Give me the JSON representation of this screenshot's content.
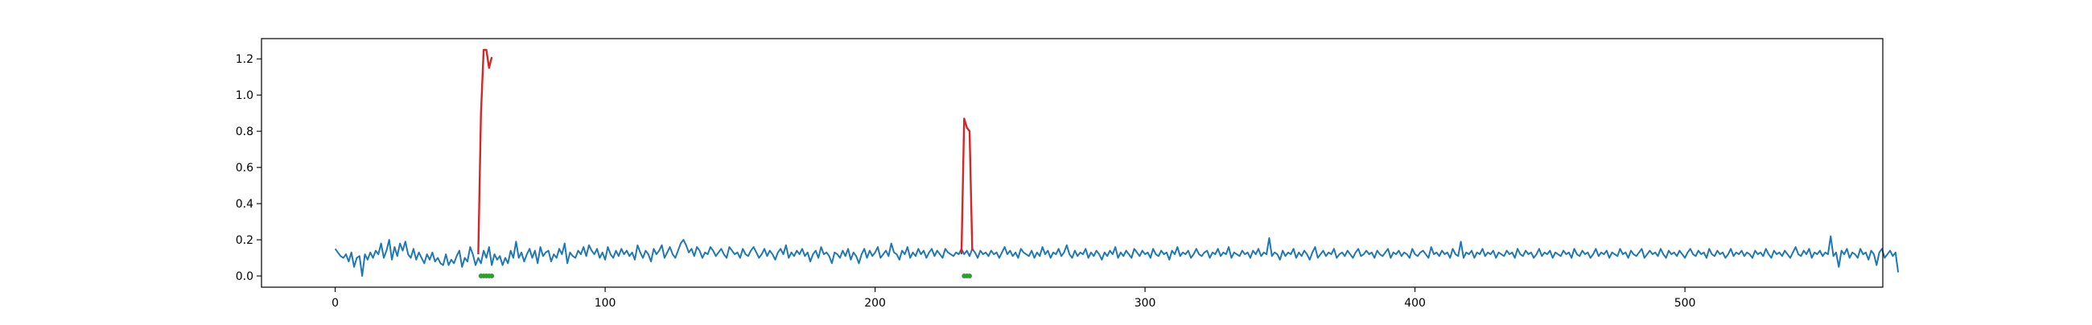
{
  "chart_data": {
    "type": "line",
    "title": "",
    "xlabel": "",
    "ylabel": "",
    "xlim": [
      -27.3,
      573.3
    ],
    "ylim": [
      -0.062,
      1.312
    ],
    "x_ticks": [
      0,
      100,
      200,
      300,
      400,
      500
    ],
    "y_ticks": [
      0.0,
      0.2,
      0.4,
      0.6,
      0.8,
      1.0,
      1.2
    ],
    "x_tick_labels": [
      "0",
      "100",
      "200",
      "300",
      "400",
      "500"
    ],
    "y_tick_labels": [
      "0.0",
      "0.2",
      "0.4",
      "0.6",
      "0.8",
      "1.0",
      "1.2"
    ],
    "grid": false,
    "legend": "none",
    "series": [
      {
        "color": "#1f77b4",
        "x_start": 0,
        "values": [
          0.15,
          0.13,
          0.11,
          0.1,
          0.12,
          0.08,
          0.13,
          0.05,
          0.1,
          0.11,
          0.0,
          0.12,
          0.09,
          0.13,
          0.1,
          0.14,
          0.12,
          0.18,
          0.1,
          0.14,
          0.2,
          0.09,
          0.16,
          0.11,
          0.18,
          0.14,
          0.19,
          0.12,
          0.1,
          0.15,
          0.09,
          0.13,
          0.1,
          0.07,
          0.12,
          0.09,
          0.13,
          0.08,
          0.1,
          0.07,
          0.06,
          0.12,
          0.06,
          0.09,
          0.07,
          0.11,
          0.14,
          0.05,
          0.1,
          0.08,
          0.16,
          0.12,
          0.06,
          0.1,
          0.07,
          0.14,
          0.1,
          0.16,
          0.06,
          0.12,
          0.09,
          0.11,
          0.06,
          0.1,
          0.07,
          0.14,
          0.1,
          0.19,
          0.1,
          0.13,
          0.08,
          0.12,
          0.15,
          0.1,
          0.14,
          0.07,
          0.16,
          0.11,
          0.13,
          0.14,
          0.08,
          0.12,
          0.1,
          0.15,
          0.12,
          0.18,
          0.07,
          0.13,
          0.11,
          0.1,
          0.14,
          0.12,
          0.16,
          0.11,
          0.17,
          0.14,
          0.12,
          0.15,
          0.1,
          0.13,
          0.09,
          0.16,
          0.12,
          0.1,
          0.14,
          0.11,
          0.15,
          0.12,
          0.14,
          0.11,
          0.13,
          0.09,
          0.17,
          0.13,
          0.1,
          0.14,
          0.12,
          0.08,
          0.15,
          0.12,
          0.14,
          0.17,
          0.1,
          0.13,
          0.16,
          0.12,
          0.1,
          0.14,
          0.18,
          0.2,
          0.17,
          0.13,
          0.15,
          0.11,
          0.16,
          0.14,
          0.1,
          0.13,
          0.12,
          0.16,
          0.14,
          0.11,
          0.13,
          0.15,
          0.12,
          0.1,
          0.16,
          0.14,
          0.12,
          0.13,
          0.1,
          0.15,
          0.12,
          0.11,
          0.14,
          0.16,
          0.13,
          0.1,
          0.12,
          0.15,
          0.11,
          0.14,
          0.12,
          0.09,
          0.13,
          0.15,
          0.12,
          0.17,
          0.1,
          0.13,
          0.11,
          0.14,
          0.12,
          0.15,
          0.11,
          0.13,
          0.08,
          0.12,
          0.14,
          0.1,
          0.16,
          0.12,
          0.13,
          0.11,
          0.07,
          0.13,
          0.12,
          0.1,
          0.14,
          0.11,
          0.15,
          0.09,
          0.13,
          0.11,
          0.07,
          0.12,
          0.15,
          0.1,
          0.14,
          0.11,
          0.13,
          0.16,
          0.1,
          0.12,
          0.14,
          0.11,
          0.18,
          0.13,
          0.12,
          0.09,
          0.14,
          0.12,
          0.16,
          0.1,
          0.13,
          0.11,
          0.15,
          0.12,
          0.14,
          0.1,
          0.13,
          0.15,
          0.11,
          0.14,
          0.12,
          0.1,
          0.15,
          0.13,
          0.12,
          0.11,
          0.13,
          0.12,
          0.15,
          0.12,
          0.14,
          0.11,
          0.15,
          0.13,
          0.1,
          0.14,
          0.12,
          0.13,
          0.11,
          0.14,
          0.12,
          0.13,
          0.1,
          0.13,
          0.16,
          0.12,
          0.14,
          0.11,
          0.13,
          0.1,
          0.15,
          0.13,
          0.12,
          0.11,
          0.14,
          0.1,
          0.13,
          0.11,
          0.16,
          0.12,
          0.14,
          0.1,
          0.13,
          0.12,
          0.15,
          0.11,
          0.13,
          0.17,
          0.12,
          0.1,
          0.14,
          0.11,
          0.13,
          0.12,
          0.15,
          0.1,
          0.13,
          0.11,
          0.14,
          0.12,
          0.09,
          0.13,
          0.11,
          0.14,
          0.12,
          0.16,
          0.1,
          0.13,
          0.11,
          0.14,
          0.12,
          0.1,
          0.15,
          0.13,
          0.11,
          0.14,
          0.12,
          0.13,
          0.1,
          0.15,
          0.12,
          0.11,
          0.14,
          0.12,
          0.13,
          0.09,
          0.14,
          0.12,
          0.16,
          0.11,
          0.13,
          0.12,
          0.14,
          0.1,
          0.12,
          0.15,
          0.12,
          0.11,
          0.13,
          0.14,
          0.1,
          0.13,
          0.12,
          0.15,
          0.11,
          0.13,
          0.12,
          0.16,
          0.1,
          0.13,
          0.12,
          0.11,
          0.14,
          0.12,
          0.13,
          0.1,
          0.14,
          0.12,
          0.15,
          0.11,
          0.13,
          0.12,
          0.21,
          0.11,
          0.13,
          0.12,
          0.09,
          0.14,
          0.11,
          0.13,
          0.12,
          0.15,
          0.1,
          0.13,
          0.11,
          0.14,
          0.12,
          0.09,
          0.13,
          0.16,
          0.1,
          0.12,
          0.14,
          0.11,
          0.13,
          0.12,
          0.15,
          0.1,
          0.12,
          0.13,
          0.11,
          0.14,
          0.12,
          0.1,
          0.13,
          0.15,
          0.11,
          0.12,
          0.14,
          0.12,
          0.13,
          0.1,
          0.14,
          0.12,
          0.11,
          0.13,
          0.15,
          0.1,
          0.13,
          0.12,
          0.14,
          0.11,
          0.13,
          0.12,
          0.1,
          0.15,
          0.12,
          0.11,
          0.13,
          0.14,
          0.12,
          0.1,
          0.16,
          0.12,
          0.13,
          0.11,
          0.14,
          0.12,
          0.13,
          0.1,
          0.15,
          0.12,
          0.11,
          0.19,
          0.1,
          0.13,
          0.12,
          0.14,
          0.1,
          0.13,
          0.12,
          0.15,
          0.11,
          0.13,
          0.12,
          0.14,
          0.1,
          0.13,
          0.12,
          0.11,
          0.14,
          0.12,
          0.13,
          0.1,
          0.15,
          0.12,
          0.11,
          0.14,
          0.12,
          0.13,
          0.1,
          0.12,
          0.15,
          0.11,
          0.13,
          0.12,
          0.14,
          0.1,
          0.13,
          0.12,
          0.11,
          0.14,
          0.12,
          0.13,
          0.1,
          0.15,
          0.12,
          0.11,
          0.14,
          0.12,
          0.13,
          0.1,
          0.12,
          0.15,
          0.11,
          0.13,
          0.12,
          0.14,
          0.1,
          0.13,
          0.12,
          0.11,
          0.15,
          0.12,
          0.13,
          0.1,
          0.14,
          0.12,
          0.11,
          0.13,
          0.15,
          0.1,
          0.12,
          0.14,
          0.12,
          0.13,
          0.11,
          0.15,
          0.12,
          0.1,
          0.14,
          0.12,
          0.13,
          0.11,
          0.14,
          0.12,
          0.1,
          0.13,
          0.15,
          0.12,
          0.11,
          0.14,
          0.12,
          0.13,
          0.1,
          0.15,
          0.12,
          0.11,
          0.14,
          0.12,
          0.13,
          0.1,
          0.12,
          0.15,
          0.11,
          0.13,
          0.12,
          0.14,
          0.11,
          0.13,
          0.12,
          0.1,
          0.14,
          0.12,
          0.13,
          0.11,
          0.15,
          0.12,
          0.1,
          0.14,
          0.12,
          0.13,
          0.11,
          0.14,
          0.12,
          0.1,
          0.13,
          0.16,
          0.12,
          0.11,
          0.14,
          0.12,
          0.15,
          0.1,
          0.13,
          0.12,
          0.14,
          0.11,
          0.13,
          0.12,
          0.22,
          0.11,
          0.13,
          0.05,
          0.14,
          0.12,
          0.15,
          0.1,
          0.13,
          0.12,
          0.1,
          0.15,
          0.12,
          0.13,
          0.09,
          0.14,
          0.12,
          0.06,
          0.13,
          0.15,
          0.1,
          0.12,
          0.14,
          0.11,
          0.13,
          0.02
        ]
      },
      {
        "color": "#d62728",
        "segments": [
          {
            "x": [
              53,
              54,
              55,
              56,
              57,
              58
            ],
            "y": [
              0.12,
              0.9,
              1.25,
              1.25,
              1.15,
              1.21
            ]
          },
          {
            "x": [
              232,
              233,
              234,
              235,
              236
            ],
            "y": [
              0.12,
              0.87,
              0.82,
              0.8,
              0.14
            ]
          }
        ]
      },
      {
        "color": "#2ca02c",
        "type": "markers",
        "x": [
          54,
          55,
          56,
          57,
          58,
          233,
          234,
          235
        ],
        "y": [
          0,
          0,
          0,
          0,
          0,
          0,
          0,
          0
        ]
      }
    ]
  }
}
